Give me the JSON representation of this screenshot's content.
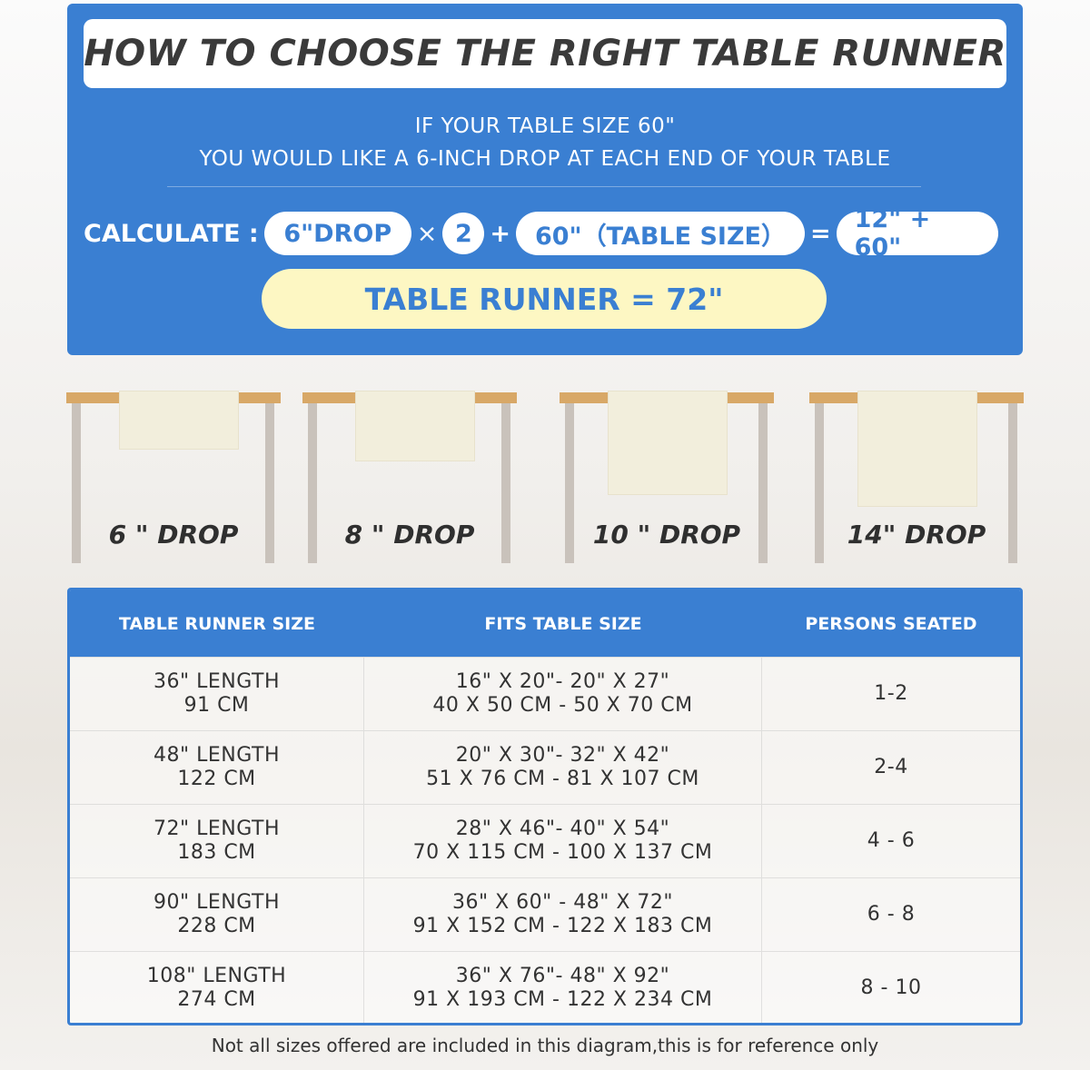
{
  "title": "HOW TO CHOOSE THE RIGHT TABLE RUNNER",
  "subtitle_lines": [
    "IF YOUR TABLE SIZE 60\"",
    "YOU WOULD LIKE A 6-INCH DROP AT EACH END OF YOUR TABLE"
  ],
  "calculation": {
    "label": "CALCULATE :",
    "drop": "6\"DROP",
    "times": "×",
    "multiplier": "2",
    "plus": "+",
    "table_size": "60\"（TABLE SIZE）",
    "equals": "=",
    "sum": "12\" + 60\"",
    "result": "TABLE RUNNER = 72\""
  },
  "drops": [
    {
      "label": "6 \" DROP",
      "inches": 6
    },
    {
      "label": "8 \" DROP",
      "inches": 8
    },
    {
      "label": "10 \" DROP",
      "inches": 10
    },
    {
      "label": "14\" DROP",
      "inches": 14
    }
  ],
  "colors": {
    "blue": "#3a7fd2",
    "yellow": "#fdf7c3",
    "tabletop": "#d8a867"
  },
  "table": {
    "headers": [
      "TABLE RUNNER SIZE",
      "FITS TABLE SIZE",
      "PERSONS SEATED"
    ],
    "rows": [
      {
        "size": [
          "36\" LENGTH",
          "91 CM"
        ],
        "fits": [
          "16\" X 20\"- 20\" X 27\"",
          "40 X 50 CM - 50 X 70 CM"
        ],
        "persons": "1-2"
      },
      {
        "size": [
          "48\" LENGTH",
          "122 CM"
        ],
        "fits": [
          "20\" X 30\"- 32\" X 42\"",
          "51 X 76 CM - 81 X 107 CM"
        ],
        "persons": "2-4"
      },
      {
        "size": [
          "72\" LENGTH",
          "183 CM"
        ],
        "fits": [
          "28\" X 46\"- 40\" X 54\"",
          "70 X 115 CM - 100 X 137 CM"
        ],
        "persons": "4 - 6"
      },
      {
        "size": [
          "90\" LENGTH",
          "228 CM"
        ],
        "fits": [
          "36\" X 60\" - 48\" X 72\"",
          "91 X 152 CM - 122 X 183 CM"
        ],
        "persons": "6 - 8"
      },
      {
        "size": [
          "108\" LENGTH",
          "274 CM"
        ],
        "fits": [
          "36\" X 76\"- 48\" X 92\"",
          "91 X 193 CM - 122 X 234 CM"
        ],
        "persons": "8 - 10"
      }
    ]
  },
  "note": "Not all sizes offered are included in this diagram,this is for reference only"
}
